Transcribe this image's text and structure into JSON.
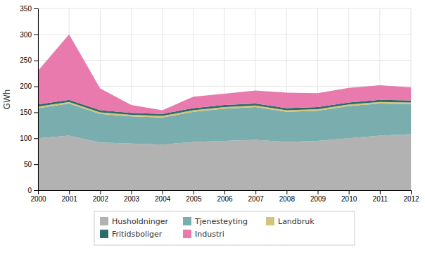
{
  "chart_data": {
    "type": "area",
    "stacked": true,
    "x": [
      2000,
      2001,
      2002,
      2003,
      2004,
      2005,
      2006,
      2007,
      2008,
      2009,
      2010,
      2011,
      2012
    ],
    "xlim": [
      2000,
      2012
    ],
    "xticks": [
      2000,
      2001,
      2002,
      2003,
      2004,
      2005,
      2006,
      2007,
      2008,
      2009,
      2010,
      2011,
      2012
    ],
    "ylim": [
      0,
      350
    ],
    "yticks": [
      0,
      50,
      100,
      150,
      200,
      250,
      300,
      350
    ],
    "ylabel": "GWh",
    "grid": true,
    "legend": "bottom",
    "series": [
      {
        "name": "Husholdninger",
        "color": "#b2b2b2",
        "values": [
          100,
          105,
          92,
          90,
          88,
          93,
          95,
          97,
          93,
          95,
          100,
          105,
          108
        ]
      },
      {
        "name": "Tjenesteyting",
        "color": "#7aadad",
        "values": [
          58,
          62,
          55,
          52,
          52,
          58,
          62,
          63,
          58,
          58,
          62,
          62,
          58
        ]
      },
      {
        "name": "Landbruk",
        "color": "#d4c47a",
        "values": [
          3,
          3,
          3,
          3,
          3,
          3,
          3,
          3,
          3,
          3,
          3,
          3,
          3
        ]
      },
      {
        "name": "Fritidsboliger",
        "color": "#2e6b6b",
        "values": [
          4,
          4,
          4,
          4,
          4,
          4,
          4,
          4,
          4,
          4,
          4,
          4,
          4
        ]
      },
      {
        "name": "Industri",
        "color": "#e87aad",
        "values": [
          65,
          126,
          42,
          15,
          7,
          22,
          22,
          25,
          30,
          27,
          28,
          28,
          25
        ]
      }
    ]
  }
}
